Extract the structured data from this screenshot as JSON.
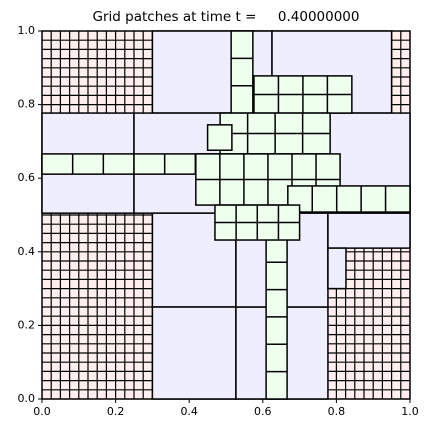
{
  "chart_data": {
    "type": "patches",
    "title": "Grid patches at time t =     0.40000000",
    "xlim": [
      0,
      1
    ],
    "ylim": [
      0,
      1
    ],
    "xticks": [
      {
        "value": 0,
        "label": "0.0"
      },
      {
        "value": 0.2,
        "label": "0.2"
      },
      {
        "value": 0.4,
        "label": "0.4"
      },
      {
        "value": 0.6,
        "label": "0.6"
      },
      {
        "value": 0.8,
        "label": "0.8"
      },
      {
        "value": 1,
        "label": "1.0"
      }
    ],
    "yticks": [
      {
        "value": 0,
        "label": "0.0"
      },
      {
        "value": 0.2,
        "label": "0.2"
      },
      {
        "value": 0.4,
        "label": "0.4"
      },
      {
        "value": 0.6,
        "label": "0.6"
      },
      {
        "value": 0.8,
        "label": "0.8"
      },
      {
        "value": 1,
        "label": "1.0"
      }
    ],
    "level_colors": [
      "#ffeeee",
      "#eeeeff",
      "#eeffee"
    ],
    "patches": [
      {
        "level": 1,
        "xlim": [
          0,
          1
        ],
        "ylim": [
          0,
          1
        ],
        "nx": 40,
        "ny": 40
      },
      {
        "level": 2,
        "xlim": [
          0.3,
          0.625
        ],
        "ylim": [
          0.777,
          1
        ],
        "nx": 1,
        "ny": 1
      },
      {
        "level": 2,
        "xlim": [
          0.625,
          0.95
        ],
        "ylim": [
          0.777,
          1
        ],
        "nx": 1,
        "ny": 1
      },
      {
        "level": 2,
        "xlim": [
          0,
          0.25
        ],
        "ylim": [
          0.505,
          0.777
        ],
        "nx": 1,
        "ny": 1
      },
      {
        "level": 2,
        "xlim": [
          0.25,
          1
        ],
        "ylim": [
          0.505,
          0.777
        ],
        "nx": 1,
        "ny": 1
      },
      {
        "level": 2,
        "xlim": [
          0.3,
          0.527
        ],
        "ylim": [
          0.25,
          0.505
        ],
        "nx": 1,
        "ny": 1
      },
      {
        "level": 2,
        "xlim": [
          0.3,
          0.527
        ],
        "ylim": [
          0,
          0.25
        ],
        "nx": 1,
        "ny": 1
      },
      {
        "level": 2,
        "xlim": [
          0.527,
          0.777
        ],
        "ylim": [
          0,
          0.25
        ],
        "nx": 1,
        "ny": 1
      },
      {
        "level": 2,
        "xlim": [
          0.527,
          0.777
        ],
        "ylim": [
          0.25,
          0.505
        ],
        "nx": 1,
        "ny": 1
      },
      {
        "level": 2,
        "xlim": [
          0.777,
          1
        ],
        "ylim": [
          0.41,
          0.505
        ],
        "nx": 1,
        "ny": 1
      },
      {
        "level": 2,
        "xlim": [
          0.777,
          0.826
        ],
        "ylim": [
          0.3,
          0.41
        ],
        "nx": 1,
        "ny": 1
      },
      {
        "level": 3,
        "xlim": [
          0,
          0.25
        ],
        "ylim": [
          0.611,
          0.666
        ],
        "nx": 3,
        "ny": 1
      },
      {
        "level": 3,
        "xlim": [
          0.25,
          0.5
        ],
        "ylim": [
          0.611,
          0.666
        ],
        "nx": 3,
        "ny": 1
      },
      {
        "level": 3,
        "xlim": [
          0.514,
          0.573
        ],
        "ylim": [
          0.777,
          1
        ],
        "nx": 1,
        "ny": 3
      },
      {
        "level": 3,
        "xlim": [
          0.609,
          0.666
        ],
        "ylim": [
          0,
          0.446
        ],
        "nx": 1,
        "ny": 6
      },
      {
        "level": 3,
        "xlim": [
          0.576,
          0.842
        ],
        "ylim": [
          0.777,
          0.878
        ],
        "nx": 4,
        "ny": 2
      },
      {
        "level": 3,
        "xlim": [
          0.484,
          0.783
        ],
        "ylim": [
          0.666,
          0.777
        ],
        "nx": 4,
        "ny": 2
      },
      {
        "level": 3,
        "xlim": [
          0.418,
          0.81
        ],
        "ylim": [
          0.527,
          0.666
        ],
        "nx": 6,
        "ny": 2
      },
      {
        "level": 3,
        "xlim": [
          0.668,
          1
        ],
        "ylim": [
          0.508,
          0.579
        ],
        "nx": 5,
        "ny": 1
      },
      {
        "level": 3,
        "xlim": [
          0.47,
          0.7
        ],
        "ylim": [
          0.432,
          0.527
        ],
        "nx": 4,
        "ny": 2
      },
      {
        "level": 3,
        "xlim": [
          0.45,
          0.516
        ],
        "ylim": [
          0.676,
          0.745
        ],
        "nx": 1,
        "ny": 1
      }
    ]
  }
}
